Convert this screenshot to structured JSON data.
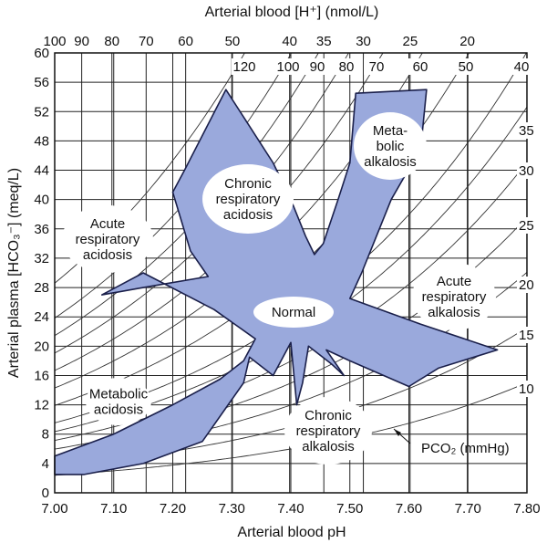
{
  "chart_data": {
    "type": "line",
    "title": "",
    "xlabel": "Arterial blood pH",
    "ylabel": "Arterial plasma [HCO₃⁻] (meq/L)",
    "top_axis_label": "Arterial blood [H⁺] (nmol/L)",
    "xlim": [
      7.0,
      7.8
    ],
    "ylim": [
      0,
      60
    ],
    "x_ticks": [
      "7.00",
      "7.10",
      "7.20",
      "7.30",
      "7.40",
      "7.50",
      "7.60",
      "7.70",
      "7.80"
    ],
    "y_ticks": [
      "0",
      "4",
      "8",
      "12",
      "16",
      "20",
      "24",
      "28",
      "32",
      "36",
      "40",
      "44",
      "48",
      "52",
      "56",
      "60"
    ],
    "top_ticks": [
      "100",
      "90",
      "80",
      "70",
      "60",
      "50",
      "40",
      "35",
      "30",
      "25",
      "20"
    ],
    "top_tick_values": [
      100,
      90,
      80,
      70,
      60,
      50,
      40,
      35,
      30,
      25,
      20
    ],
    "grid": true,
    "isobar_unit_label": "PCO₂ (mmHg)",
    "isobars": [
      {
        "pco2": 120,
        "label": "120"
      },
      {
        "pco2": 100,
        "label": "100"
      },
      {
        "pco2": 90,
        "label": "90"
      },
      {
        "pco2": 80,
        "label": "80"
      },
      {
        "pco2": 70,
        "label": "70"
      },
      {
        "pco2": 60,
        "label": "60"
      },
      {
        "pco2": 50,
        "label": "50"
      },
      {
        "pco2": 40,
        "label": "40"
      },
      {
        "pco2": 35,
        "label": "35"
      },
      {
        "pco2": 30,
        "label": "30"
      },
      {
        "pco2": 25,
        "label": "25"
      },
      {
        "pco2": 20,
        "label": "20"
      },
      {
        "pco2": 15,
        "label": "15"
      },
      {
        "pco2": 10,
        "label": "10"
      }
    ],
    "band_outline": [
      [
        7.0,
        5.0
      ],
      [
        7.1,
        8.0
      ],
      [
        7.2,
        12.0
      ],
      [
        7.28,
        15.5
      ],
      [
        7.32,
        18.0
      ],
      [
        7.34,
        21.0
      ],
      [
        7.27,
        25.0
      ],
      [
        7.15,
        30.0
      ],
      [
        7.08,
        27.0
      ],
      [
        7.15,
        28.0
      ],
      [
        7.26,
        29.5
      ],
      [
        7.23,
        33.0
      ],
      [
        7.2,
        41.0
      ],
      [
        7.22,
        44.0
      ],
      [
        7.29,
        55.0
      ],
      [
        7.33,
        50.0
      ],
      [
        7.37,
        45.0
      ],
      [
        7.4,
        40.0
      ],
      [
        7.425,
        35.0
      ],
      [
        7.44,
        32.5
      ],
      [
        7.455,
        34.0
      ],
      [
        7.48,
        40.0
      ],
      [
        7.5,
        45.0
      ],
      [
        7.51,
        54.5
      ],
      [
        7.63,
        55.0
      ],
      [
        7.62,
        47.0
      ],
      [
        7.57,
        40.0
      ],
      [
        7.52,
        30.0
      ],
      [
        7.5,
        26.5
      ],
      [
        7.62,
        23.0
      ],
      [
        7.75,
        19.5
      ],
      [
        7.65,
        17.0
      ],
      [
        7.6,
        14.5
      ],
      [
        7.5,
        18.0
      ],
      [
        7.46,
        19.5
      ],
      [
        7.49,
        16.0
      ],
      [
        7.47,
        17.5
      ],
      [
        7.43,
        20.0
      ],
      [
        7.42,
        15.0
      ],
      [
        7.41,
        12.0
      ],
      [
        7.4,
        20.5
      ],
      [
        7.37,
        16.0
      ],
      [
        7.33,
        18.5
      ],
      [
        7.32,
        15.0
      ],
      [
        7.25,
        7.0
      ],
      [
        7.15,
        4.0
      ],
      [
        7.05,
        2.5
      ],
      [
        7.0,
        2.5
      ]
    ],
    "region_labels": [
      {
        "name": "Normal",
        "lines": [
          "Normal"
        ]
      },
      {
        "name": "chronic-respiratory-acidosis",
        "lines": [
          "Chronic",
          "respiratory",
          "acidosis"
        ]
      },
      {
        "name": "metabolic-alkalosis",
        "lines": [
          "Meta-",
          "bolic",
          "alkalosis"
        ]
      },
      {
        "name": "acute-respiratory-acidosis",
        "lines": [
          "Acute",
          "respiratory",
          "acidosis"
        ]
      },
      {
        "name": "acute-respiratory-alkalosis",
        "lines": [
          "Acute",
          "respiratory",
          "alkalosis"
        ]
      },
      {
        "name": "metabolic-acidosis",
        "lines": [
          "Metabolic",
          "acidosis"
        ]
      },
      {
        "name": "chronic-respiratory-alkalosis",
        "lines": [
          "Chronic",
          "respiratory",
          "alkalosis"
        ]
      }
    ]
  }
}
